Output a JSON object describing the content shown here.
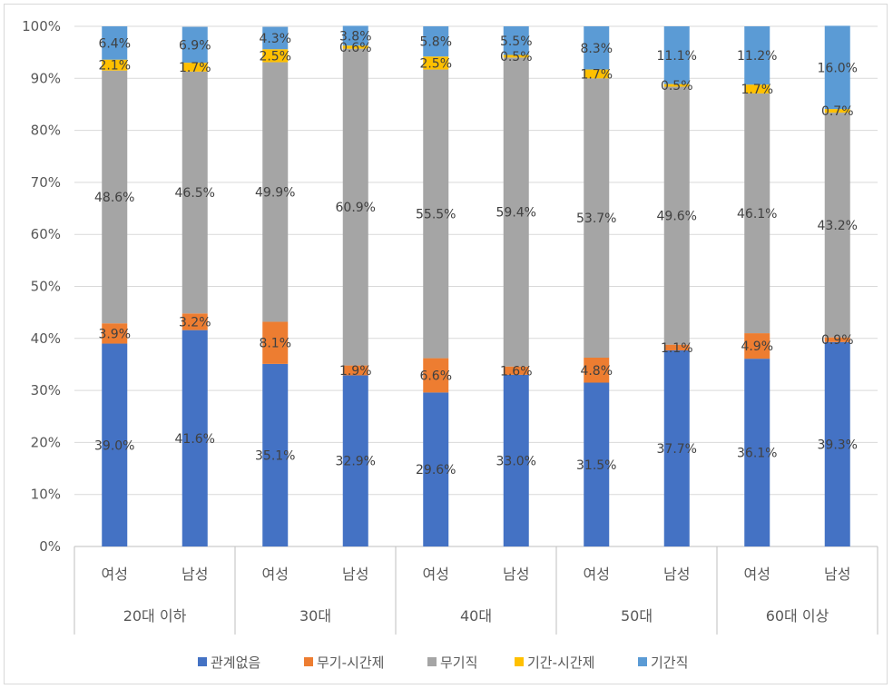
{
  "chart_data": {
    "type": "bar",
    "stacked": true,
    "percent_stacked": true,
    "title": "",
    "xlabel": "",
    "ylabel": "",
    "ylim": [
      0,
      100
    ],
    "y_ticks": [
      "0%",
      "10%",
      "20%",
      "30%",
      "40%",
      "50%",
      "60%",
      "70%",
      "80%",
      "90%",
      "100%"
    ],
    "grid": true,
    "legend_position": "bottom",
    "groups": [
      {
        "label": "20대 이하",
        "categories": [
          "여성",
          "남성"
        ]
      },
      {
        "label": "30대",
        "categories": [
          "여성",
          "남성"
        ]
      },
      {
        "label": "40대",
        "categories": [
          "여성",
          "남성"
        ]
      },
      {
        "label": "50대",
        "categories": [
          "여성",
          "남성"
        ]
      },
      {
        "label": "60대 이상",
        "categories": [
          "여성",
          "남성"
        ]
      }
    ],
    "series": [
      {
        "name": "관계없음",
        "color": "#4472C4",
        "values": [
          39.0,
          41.6,
          35.1,
          32.9,
          29.6,
          33.0,
          31.5,
          37.7,
          36.1,
          39.3
        ],
        "labels": [
          "39.0%",
          "41.6%",
          "35.1%",
          "32.9%",
          "29.6%",
          "33.0%",
          "31.5%",
          "37.7%",
          "36.1%",
          "39.3%"
        ]
      },
      {
        "name": "무기-시간제",
        "color": "#ED7D31",
        "values": [
          3.9,
          3.2,
          8.1,
          1.9,
          6.6,
          1.6,
          4.8,
          1.1,
          4.9,
          0.9
        ],
        "labels": [
          "3.9%",
          "3.2%",
          "8.1%",
          "1.9%",
          "6.6%",
          "1.6%",
          "4.8%",
          "1.1%",
          "4.9%",
          "0.9%"
        ]
      },
      {
        "name": "무기직",
        "color": "#A5A5A5",
        "values": [
          48.6,
          46.5,
          49.9,
          60.9,
          55.5,
          59.4,
          53.7,
          49.6,
          46.1,
          43.2
        ],
        "labels": [
          "48.6%",
          "46.5%",
          "49.9%",
          "60.9%",
          "55.5%",
          "59.4%",
          "53.7%",
          "49.6%",
          "46.1%",
          "43.2%"
        ]
      },
      {
        "name": "기간-시간제",
        "color": "#FFC000",
        "values": [
          2.1,
          1.7,
          2.5,
          0.6,
          2.5,
          0.5,
          1.7,
          0.5,
          1.7,
          0.7
        ],
        "labels": [
          "2.1%",
          "1.7%",
          "2.5%",
          "0.6%",
          "2.5%",
          "0.5%",
          "1.7%",
          "0.5%",
          "1.7%",
          "0.7%"
        ]
      },
      {
        "name": "기간직",
        "color": "#5B9BD5",
        "values": [
          6.4,
          6.9,
          4.3,
          3.8,
          5.8,
          5.5,
          8.3,
          11.1,
          11.2,
          16.0
        ],
        "labels": [
          "6.4%",
          "6.9%",
          "4.3%",
          "3.8%",
          "5.8%",
          "5.5%",
          "8.3%",
          "11.1%",
          "11.2%",
          "16.0%"
        ]
      }
    ]
  },
  "colors": {
    "grid": "#d9d9d9",
    "axis": "#bfbfbf",
    "tick_text": "#595959",
    "label_text": "#404040"
  }
}
